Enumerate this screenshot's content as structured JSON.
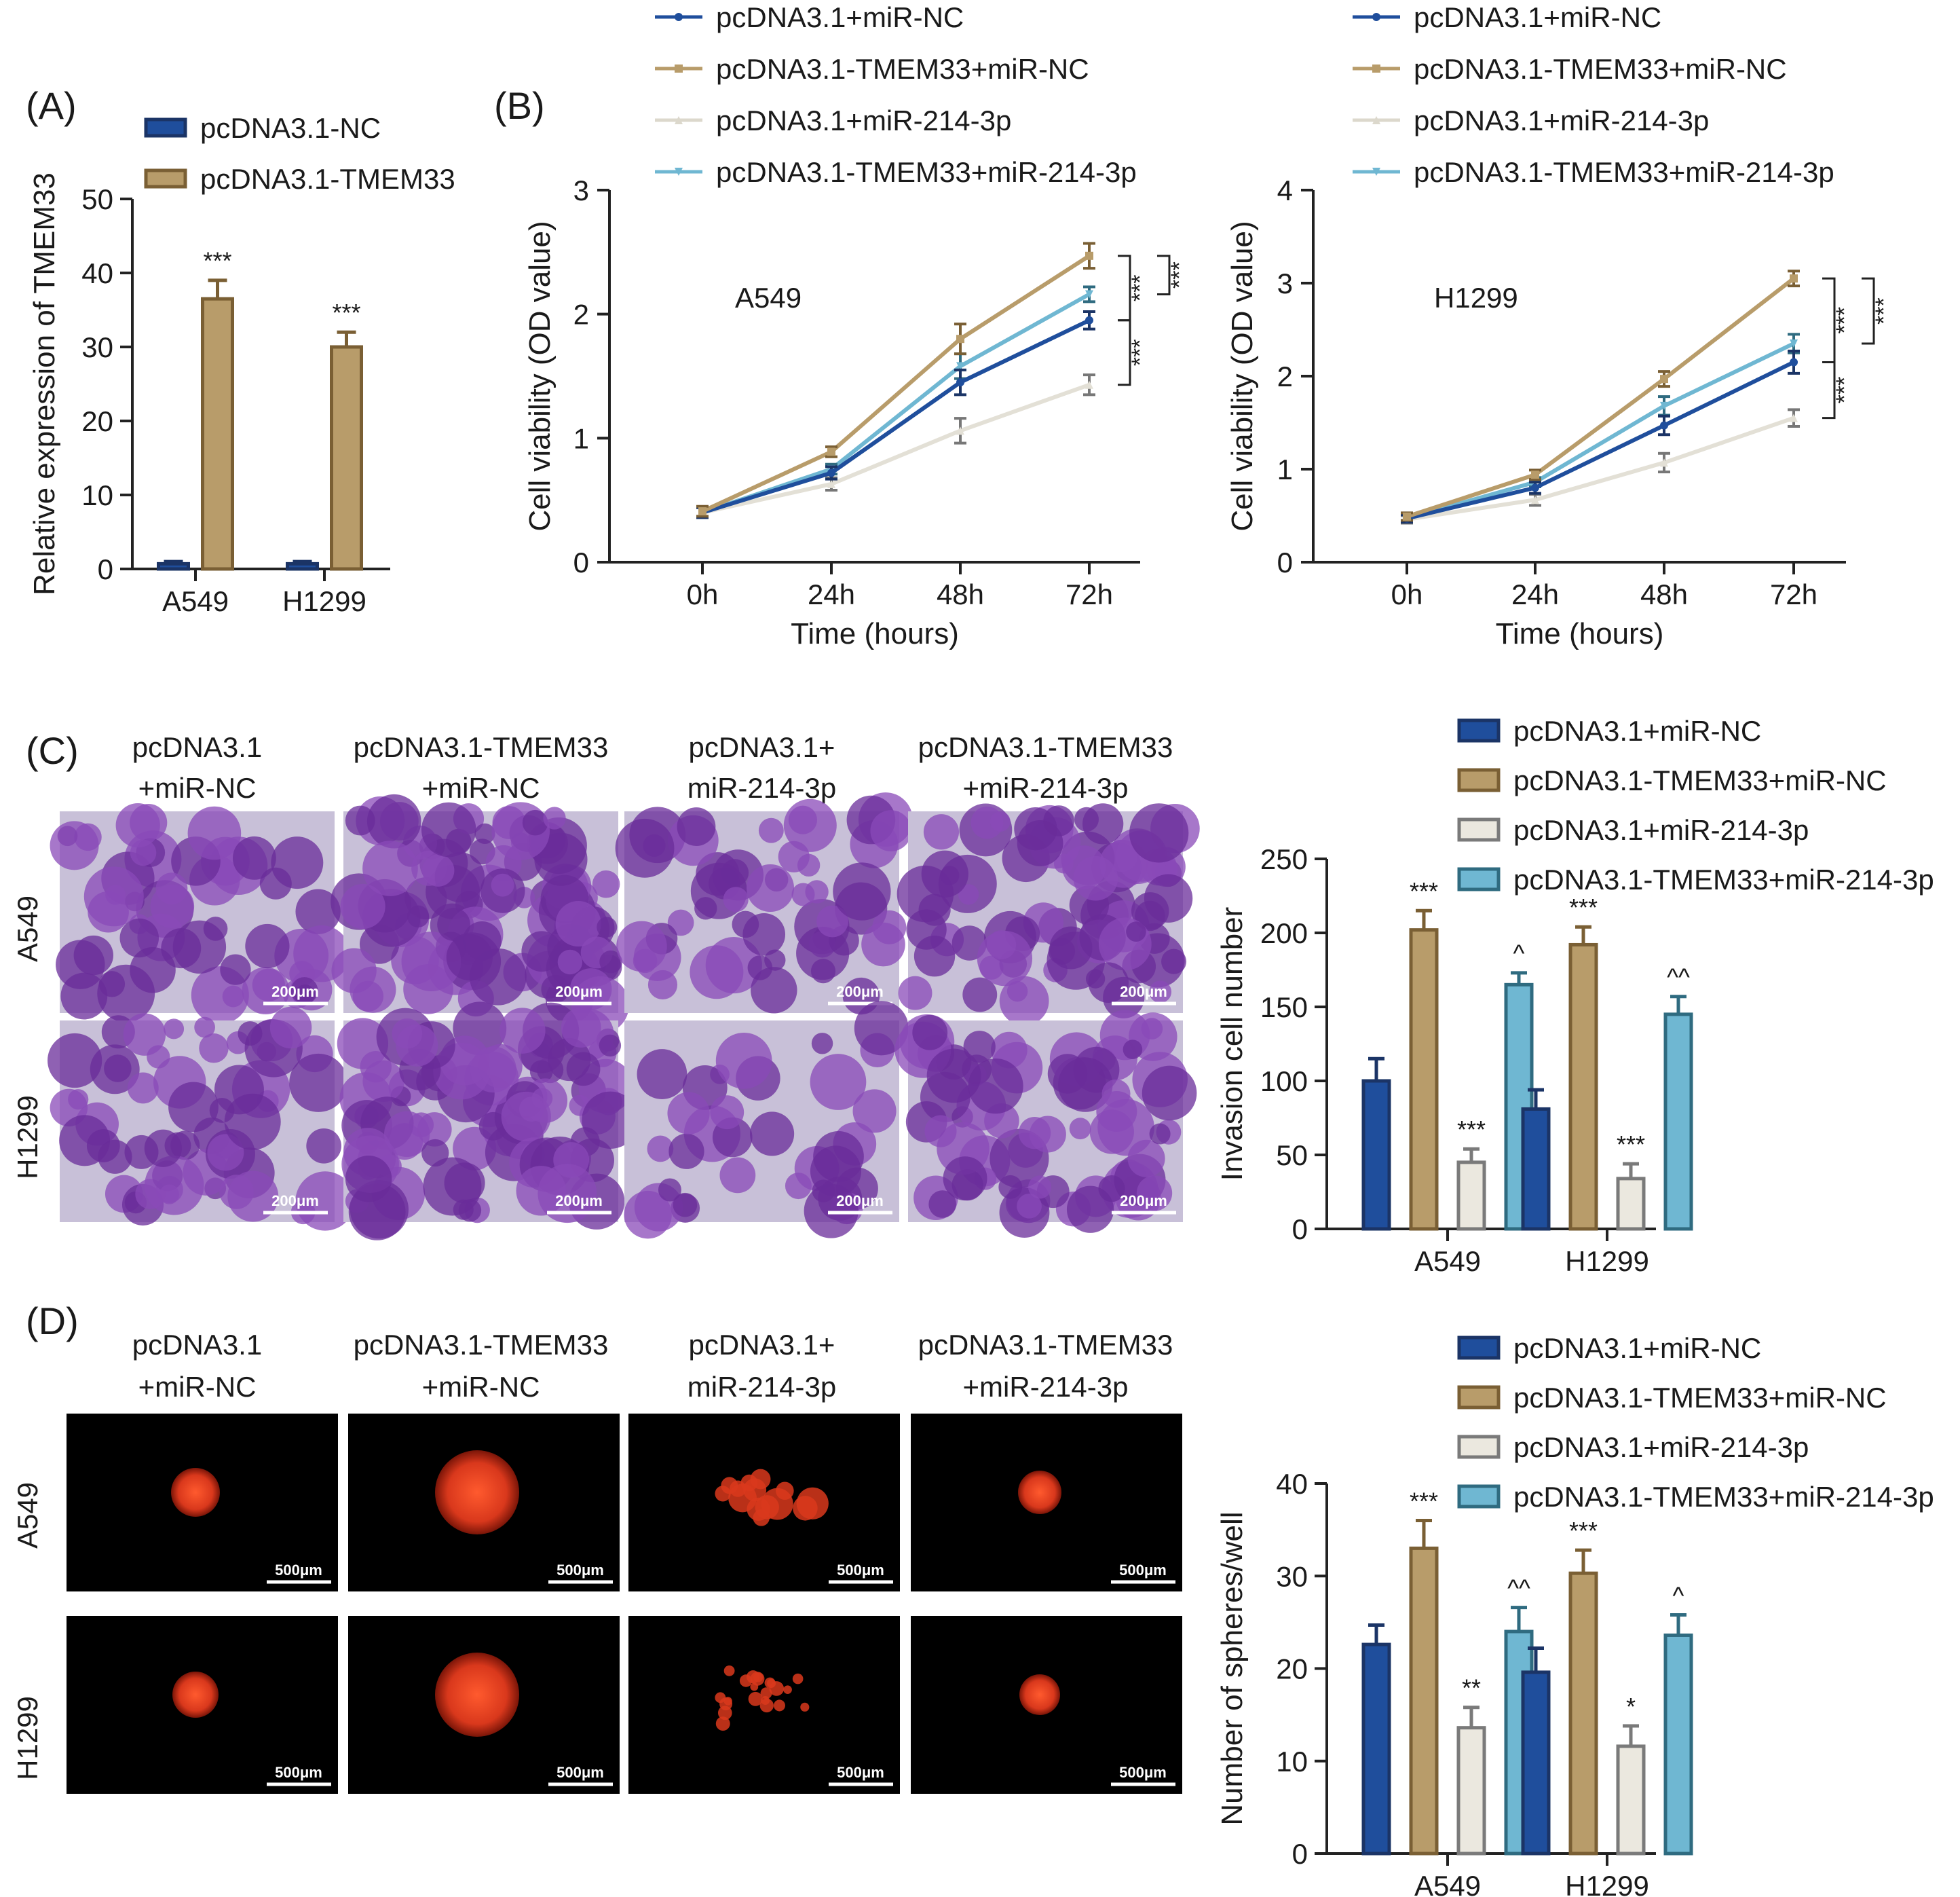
{
  "colors": {
    "navy": "#1f4e9c",
    "navy_dark": "#1b3466",
    "tan": "#b89c6a",
    "tan_dark": "#7a5f34",
    "cream": "#ebe8df",
    "cream_dark": "#7a7a7a",
    "lightblue": "#6fb7d2",
    "lightblue_dark": "#2f6b80",
    "crystal_bg": "#c8c0d8",
    "crystal_cell": "#6a2c9a",
    "sphere_bg": "#000000",
    "sphere": "#d9381c"
  },
  "panel_labels": [
    "(A)",
    "(B)",
    "(C)",
    "(D)"
  ],
  "condition_headers": [
    [
      "pcDNA3.1",
      "+miR-NC"
    ],
    [
      "pcDNA3.1-TMEM33",
      "+miR-NC"
    ],
    [
      "pcDNA3.1+",
      "miR-214-3p"
    ],
    [
      "pcDNA3.1-TMEM33",
      "+miR-214-3p"
    ]
  ],
  "row_labels": [
    "A549",
    "H1299"
  ],
  "scale_bars": {
    "invasion": "200μm",
    "sphere": "500μm"
  },
  "chart_data": [
    {
      "id": "A",
      "type": "bar",
      "categories": [
        "A549",
        "H1299"
      ],
      "series": [
        {
          "name": "pcDNA3.1-NC",
          "values": [
            0.7,
            0.7
          ],
          "errors": [
            0.3,
            0.3
          ],
          "color_key": "navy"
        },
        {
          "name": "pcDNA3.1-TMEM33",
          "values": [
            36.5,
            30.0
          ],
          "errors": [
            2.5,
            2.0
          ],
          "color_key": "tan"
        }
      ],
      "annotations": [
        {
          "series": 1,
          "category": 0,
          "text": "***"
        },
        {
          "series": 1,
          "category": 1,
          "text": "***"
        }
      ],
      "xlabel": "",
      "ylabel": "Relative expression of TMEM33",
      "ylim": [
        0,
        50
      ],
      "yticks": [
        0,
        10,
        20,
        30,
        40,
        50
      ],
      "legend": [
        "pcDNA3.1-NC",
        "pcDNA3.1-TMEM33"
      ]
    },
    {
      "id": "B1",
      "type": "line",
      "inset_title": "A549",
      "x": [
        "0h",
        "24h",
        "48h",
        "72h"
      ],
      "series": [
        {
          "name": "pcDNA3.1+miR-NC",
          "values": [
            0.4,
            0.72,
            1.45,
            1.95
          ],
          "errors": [
            0.04,
            0.05,
            0.1,
            0.07
          ],
          "color_key": "navy",
          "marker": "circle"
        },
        {
          "name": "pcDNA3.1-TMEM33+miR-NC",
          "values": [
            0.41,
            0.89,
            1.8,
            2.47
          ],
          "errors": [
            0.04,
            0.04,
            0.12,
            0.1
          ],
          "color_key": "tan",
          "marker": "square"
        },
        {
          "name": "pcDNA3.1+miR-214-3p",
          "values": [
            0.4,
            0.63,
            1.06,
            1.43
          ],
          "errors": [
            0.04,
            0.05,
            0.1,
            0.08
          ],
          "color_key": "cream",
          "marker": "triangle"
        },
        {
          "name": "pcDNA3.1-TMEM33+miR-214-3p",
          "values": [
            0.4,
            0.75,
            1.58,
            2.16
          ],
          "errors": [
            0.04,
            0.04,
            0.1,
            0.06
          ],
          "color_key": "lightblue",
          "marker": "triangle-down"
        }
      ],
      "brackets": [
        {
          "from": 0,
          "to": 1,
          "text": "***"
        },
        {
          "from": 3,
          "to": 1,
          "text": "***"
        },
        {
          "from": 2,
          "to": 0,
          "text": "***"
        }
      ],
      "xlabel": "Time (hours)",
      "ylabel": "Cell viability (OD value)",
      "ylim": [
        0,
        3
      ],
      "yticks": [
        0,
        1,
        2,
        3
      ]
    },
    {
      "id": "B2",
      "type": "line",
      "inset_title": "H1299",
      "x": [
        "0h",
        "24h",
        "48h",
        "72h"
      ],
      "series": [
        {
          "name": "pcDNA3.1+miR-NC",
          "values": [
            0.47,
            0.8,
            1.47,
            2.15
          ],
          "errors": [
            0.04,
            0.06,
            0.1,
            0.12
          ],
          "color_key": "navy",
          "marker": "circle"
        },
        {
          "name": "pcDNA3.1-TMEM33+miR-NC",
          "values": [
            0.49,
            0.94,
            1.97,
            3.05
          ],
          "errors": [
            0.04,
            0.05,
            0.08,
            0.08
          ],
          "color_key": "tan",
          "marker": "square"
        },
        {
          "name": "pcDNA3.1+miR-214-3p",
          "values": [
            0.46,
            0.67,
            1.07,
            1.55
          ],
          "errors": [
            0.04,
            0.06,
            0.1,
            0.09
          ],
          "color_key": "cream",
          "marker": "triangle"
        },
        {
          "name": "pcDNA3.1-TMEM33+miR-214-3p",
          "values": [
            0.47,
            0.86,
            1.68,
            2.35
          ],
          "errors": [
            0.04,
            0.05,
            0.1,
            0.1
          ],
          "color_key": "lightblue",
          "marker": "triangle-down"
        }
      ],
      "brackets": [
        {
          "from": 0,
          "to": 1,
          "text": "***"
        },
        {
          "from": 3,
          "to": 1,
          "text": "***"
        },
        {
          "from": 2,
          "to": 0,
          "text": "***"
        }
      ],
      "xlabel": "Time (hours)",
      "ylabel": "Cell viability (OD value)",
      "ylim": [
        0,
        4
      ],
      "yticks": [
        0,
        1,
        2,
        3,
        4
      ]
    },
    {
      "id": "C",
      "type": "bar",
      "categories": [
        "A549",
        "H1299"
      ],
      "series": [
        {
          "name": "pcDNA3.1+miR-NC",
          "values": [
            100,
            81
          ],
          "errors": [
            15,
            13
          ],
          "color_key": "navy"
        },
        {
          "name": "pcDNA3.1-TMEM33+miR-NC",
          "values": [
            202,
            192
          ],
          "errors": [
            13,
            12
          ],
          "color_key": "tan"
        },
        {
          "name": "pcDNA3.1+miR-214-3p",
          "values": [
            45,
            34
          ],
          "errors": [
            9,
            10
          ],
          "color_key": "cream"
        },
        {
          "name": "pcDNA3.1-TMEM33+miR-214-3p",
          "values": [
            165,
            145
          ],
          "errors": [
            8,
            12
          ],
          "color_key": "lightblue"
        }
      ],
      "annotations": [
        {
          "series": 1,
          "category": 0,
          "text": "***"
        },
        {
          "series": 2,
          "category": 0,
          "text": "***"
        },
        {
          "series": 3,
          "category": 0,
          "text": "^"
        },
        {
          "series": 1,
          "category": 1,
          "text": "***"
        },
        {
          "series": 2,
          "category": 1,
          "text": "***"
        },
        {
          "series": 3,
          "category": 1,
          "text": "^^"
        }
      ],
      "xlabel": "",
      "ylabel": "Invasion cell number",
      "ylim": [
        0,
        250
      ],
      "yticks": [
        0,
        50,
        100,
        150,
        200,
        250
      ],
      "legend": [
        "pcDNA3.1+miR-NC",
        "pcDNA3.1-TMEM33+miR-NC",
        "pcDNA3.1+miR-214-3p",
        "pcDNA3.1-TMEM33+miR-214-3p"
      ]
    },
    {
      "id": "D",
      "type": "bar",
      "categories": [
        "A549",
        "H1299"
      ],
      "series": [
        {
          "name": "pcDNA3.1+miR-NC",
          "values": [
            22.6,
            19.6
          ],
          "errors": [
            2.1,
            2.6
          ],
          "color_key": "navy"
        },
        {
          "name": "pcDNA3.1-TMEM33+miR-NC",
          "values": [
            33.0,
            30.3
          ],
          "errors": [
            3.0,
            2.5
          ],
          "color_key": "tan"
        },
        {
          "name": "pcDNA3.1+miR-214-3p",
          "values": [
            13.6,
            11.6
          ],
          "errors": [
            2.2,
            2.2
          ],
          "color_key": "cream"
        },
        {
          "name": "pcDNA3.1-TMEM33+miR-214-3p",
          "values": [
            24.0,
            23.6
          ],
          "errors": [
            2.6,
            2.2
          ],
          "color_key": "lightblue"
        }
      ],
      "annotations": [
        {
          "series": 1,
          "category": 0,
          "text": "***"
        },
        {
          "series": 2,
          "category": 0,
          "text": "**"
        },
        {
          "series": 3,
          "category": 0,
          "text": "^^"
        },
        {
          "series": 1,
          "category": 1,
          "text": "***"
        },
        {
          "series": 2,
          "category": 1,
          "text": "*"
        },
        {
          "series": 3,
          "category": 1,
          "text": "^"
        }
      ],
      "xlabel": "",
      "ylabel": "Number of spheres/well",
      "ylim": [
        0,
        40
      ],
      "yticks": [
        0,
        10,
        20,
        30,
        40
      ],
      "legend": [
        "pcDNA3.1+miR-NC",
        "pcDNA3.1-TMEM33+miR-NC",
        "pcDNA3.1+miR-214-3p",
        "pcDNA3.1-TMEM33+miR-214-3p"
      ]
    }
  ]
}
